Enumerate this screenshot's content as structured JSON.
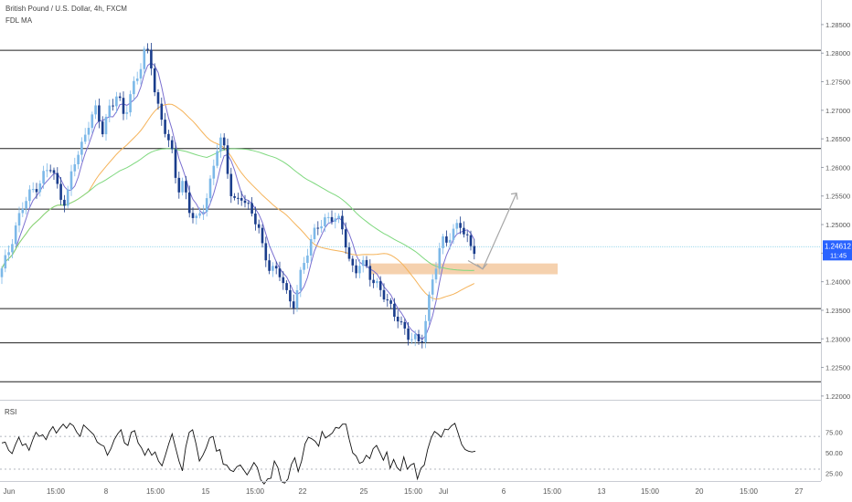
{
  "header": {
    "title": "British Pound / U.S. Dollar, 4h, FXCM",
    "indicator": "FDL MA"
  },
  "rsi_pane": {
    "label": "RSI"
  },
  "price_badge": {
    "price": "1.24612",
    "countdown": "11:45"
  },
  "colors": {
    "up": "#7cb8e8",
    "down": "#1a3d8c",
    "ma_fast": "#7a6fd0",
    "ma_mid": "#f5b35a",
    "ma_slow": "#7ed87e",
    "zone": "#f3c9a0",
    "badge": "#2962ff",
    "arrow": "#a7a7a7"
  },
  "chart_data": {
    "type": "candlestick",
    "price_axis": {
      "ticks": [
        "1.28500",
        "1.28000",
        "1.27500",
        "1.27000",
        "1.26500",
        "1.26000",
        "1.25500",
        "1.25000",
        "1.24500",
        "1.24000",
        "1.23500",
        "1.23000",
        "1.22500",
        "1.22000"
      ],
      "range": [
        1.2195,
        1.2885
      ]
    },
    "time_axis": {
      "labels": [
        "Jun",
        "15:00",
        "8",
        "15:00",
        "15",
        "15:00",
        "22",
        "25",
        "15:00",
        "Jul",
        "6",
        "15:00",
        "13",
        "15:00",
        "20",
        "15:00",
        "27"
      ]
    },
    "horizontal_levels": [
      1.2805,
      1.2633,
      1.2527,
      1.2353,
      1.2293,
      1.2225
    ],
    "current_price": 1.24612,
    "zone": {
      "top": 1.2432,
      "bottom": 1.2413
    },
    "projection": [
      [
        1.2437,
        1.2435
      ],
      [
        1.2425,
        1.2555
      ]
    ],
    "rsi": {
      "ticks": [
        "75.00",
        "50.00",
        "25.00"
      ],
      "levels": [
        70,
        30
      ],
      "values": [
        62,
        63,
        53,
        49,
        60,
        69,
        59,
        61,
        53,
        65,
        75,
        70,
        72,
        66,
        76,
        82,
        74,
        80,
        85,
        80,
        86,
        83,
        75,
        70,
        84,
        80,
        76,
        72,
        63,
        60,
        58,
        47,
        55,
        66,
        73,
        78,
        62,
        59,
        75,
        77,
        62,
        56,
        47,
        55,
        47,
        51,
        40,
        34,
        47,
        61,
        73,
        56,
        40,
        28,
        57,
        75,
        78,
        61,
        40,
        47,
        56,
        68,
        70,
        52,
        54,
        36,
        35,
        29,
        27,
        33,
        35,
        29,
        23,
        30,
        38,
        32,
        17,
        12,
        18,
        19,
        40,
        32,
        15,
        13,
        18,
        36,
        44,
        27,
        40,
        61,
        69,
        67,
        64,
        58,
        76,
        68,
        71,
        74,
        81,
        80,
        85,
        85,
        66,
        50,
        46,
        37,
        39,
        47,
        43,
        55,
        59,
        50,
        41,
        51,
        31,
        42,
        32,
        28,
        45,
        30,
        35,
        37,
        18,
        31,
        35,
        54,
        68,
        76,
        73,
        69,
        79,
        78,
        83,
        86,
        73,
        60,
        54,
        52,
        51,
        52
      ]
    }
  }
}
